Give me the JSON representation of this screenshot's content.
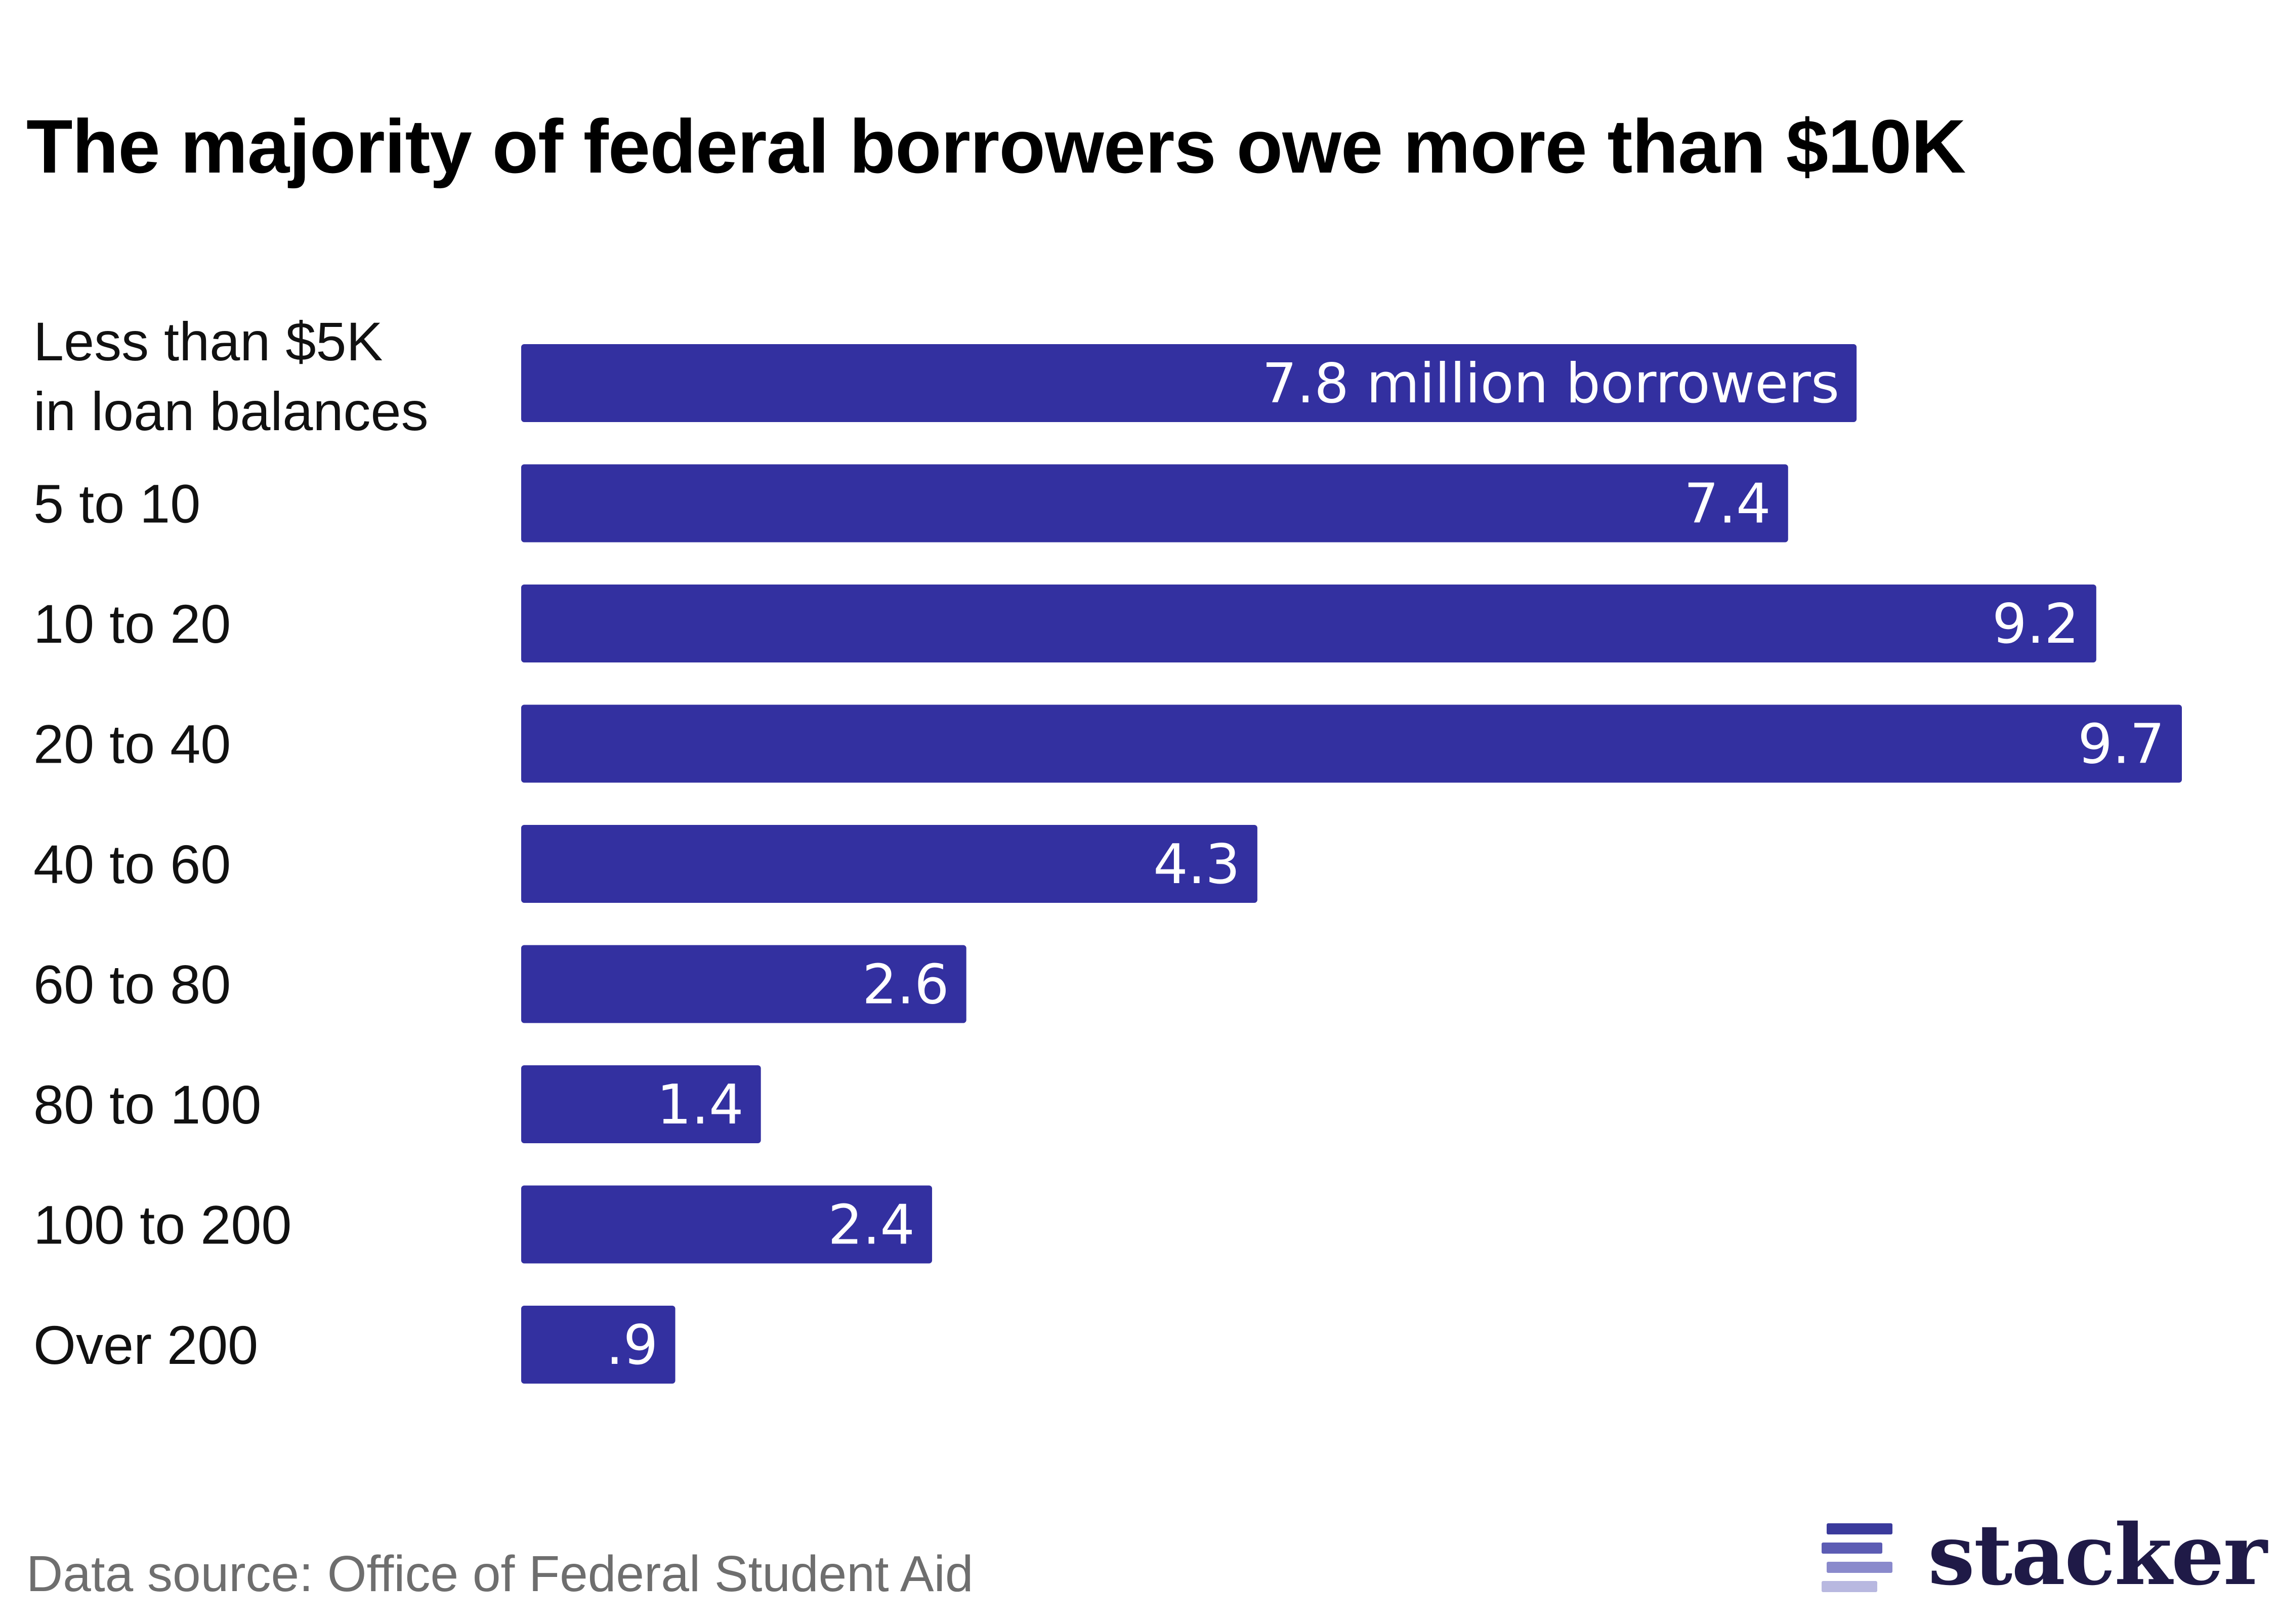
{
  "chart_data": {
    "type": "bar",
    "orientation": "horizontal",
    "title": "The majority of federal borrowers owe more than $10K",
    "categories": [
      [
        "Less than $5K",
        "in loan balances"
      ],
      [
        "5 to 10"
      ],
      [
        "10 to 20"
      ],
      [
        "20 to 40"
      ],
      [
        "40 to 60"
      ],
      [
        "60 to 80"
      ],
      [
        "80 to 100"
      ],
      [
        "100 to 200"
      ],
      [
        "Over 200"
      ]
    ],
    "values": [
      7.8,
      7.4,
      9.2,
      9.7,
      4.3,
      2.6,
      1.4,
      2.4,
      0.9
    ],
    "value_labels": [
      "7.8 million borrowers",
      "7.4",
      "9.2",
      "9.7",
      "4.3",
      "2.6",
      "1.4",
      "2.4",
      ".9"
    ],
    "bar_color": "#3330a0",
    "grid": false,
    "legend": "none"
  },
  "footer": {
    "source": "Data source: Office of Federal Student Aid",
    "brand": "stacker",
    "brand_icon": "stacker-logo-icon",
    "brand_color": "#1f1a47",
    "brand_icon_colors": [
      "#3a3a9c",
      "#5c5cb4",
      "#8a8acc",
      "#b8b8e0"
    ]
  }
}
